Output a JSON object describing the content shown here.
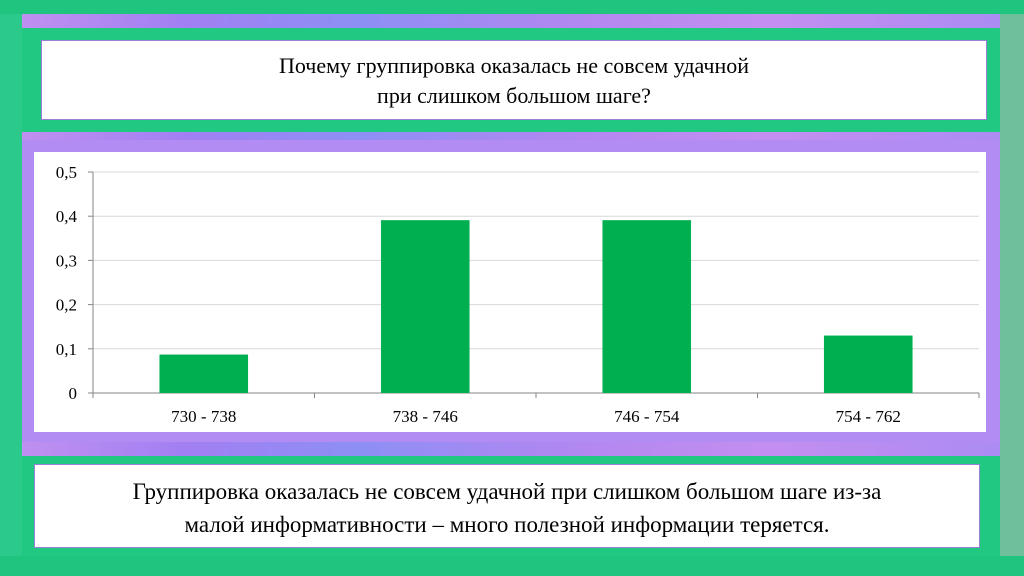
{
  "title": {
    "line1": "Почему группировка оказалась не совсем удачной",
    "line2": "при слишком большом шаге?"
  },
  "caption": {
    "line1": "Группировка оказалась не совсем удачной  при слишком большом шаге из-за",
    "line2": "малой информативности – много полезной информации теряется."
  },
  "colors": {
    "bar": "#00b050",
    "background_green": "#24c983",
    "background_purple": "#b28cf2"
  },
  "chart_data": {
    "type": "bar",
    "categories": [
      "730 - 738",
      "738 - 746",
      "746 - 754",
      "754 - 762"
    ],
    "values": [
      0.087,
      0.391,
      0.391,
      0.13
    ],
    "ylim": [
      0,
      0.5
    ],
    "yticks": [
      "0",
      "0,1",
      "0,2",
      "0,3",
      "0,4",
      "0,5"
    ],
    "grid": true,
    "legend": "none",
    "title": "",
    "xlabel": "",
    "ylabel": ""
  }
}
